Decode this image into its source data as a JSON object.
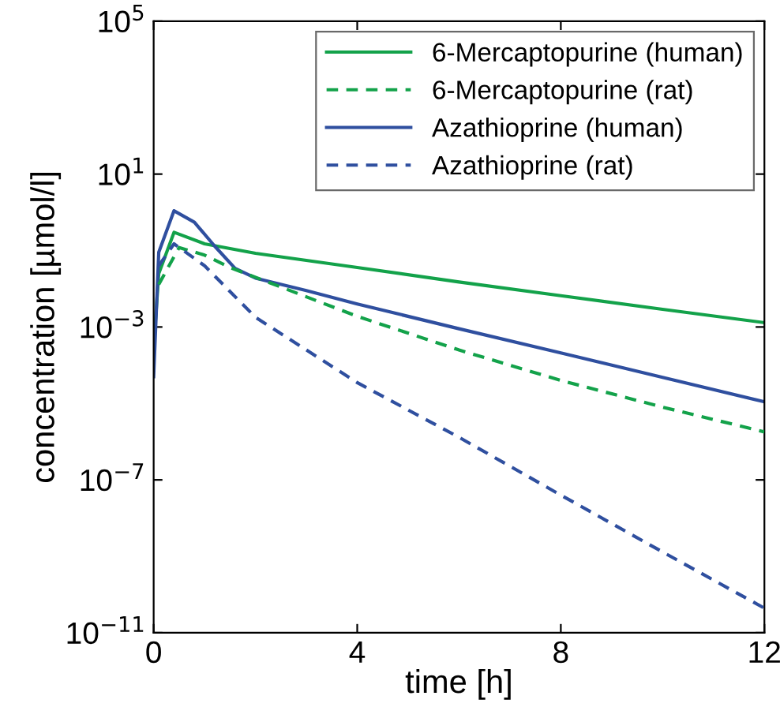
{
  "chart_data": {
    "type": "line",
    "xlabel": "time [h]",
    "ylabel": "concentration [µmol/l]",
    "xlim": [
      0,
      12
    ],
    "xticks": [
      0,
      4,
      8,
      12
    ],
    "ylim": [
      1e-11,
      100000
    ],
    "log": true,
    "yticks": [
      {
        "value": 1e-11,
        "label": "10$^{−11}$"
      },
      {
        "value": 1e-07,
        "label": "10$^{−7}$"
      },
      {
        "value": 0.001,
        "label": "10$^{−3}$"
      },
      {
        "value": 10,
        "label": "10$^{1}$"
      },
      {
        "value": 100000,
        "label": "10$^{5}$"
      }
    ],
    "grid": false,
    "legend": "top right",
    "series": [
      {
        "name": "6-Mercaptopurine (human)",
        "color": "#13a24a",
        "line_style": "solid",
        "x": [
          0,
          0.1,
          0.4,
          1,
          2,
          4,
          6,
          8,
          10,
          12
        ],
        "values": [
          0.0003,
          0.025,
          0.3,
          0.15,
          0.085,
          0.036,
          0.015,
          0.0066,
          0.0029,
          0.0013
        ]
      },
      {
        "name": "6-Mercaptopurine (rat)",
        "color": "#13a24a",
        "line_style": "dashed",
        "x": [
          0.1,
          0.5,
          1,
          1.5,
          2,
          4,
          6,
          8,
          10,
          12
        ],
        "values": [
          0.013,
          0.12,
          0.076,
          0.036,
          0.02,
          0.0019,
          0.00025,
          4e-05,
          8e-06,
          1.8e-06
        ]
      },
      {
        "name": "Azathioprine (human)",
        "color": "#2f4f9f",
        "line_style": "solid",
        "x": [
          0,
          0.1,
          0.4,
          0.8,
          1.2,
          1.6,
          2,
          3,
          4,
          6,
          8,
          10,
          12
        ],
        "values": [
          5e-05,
          0.09,
          1.1,
          0.55,
          0.13,
          0.034,
          0.019,
          0.009,
          0.004,
          0.0009,
          0.00021,
          4.8e-05,
          1.1e-05
        ]
      },
      {
        "name": "Azathioprine (rat)",
        "color": "#2f4f9f",
        "line_style": "dashed",
        "x": [
          0.1,
          0.4,
          1,
          2,
          4,
          6,
          8,
          10,
          12
        ],
        "values": [
          0.04,
          0.15,
          0.04,
          0.0018,
          3.5e-05,
          1.3e-06,
          4e-08,
          1.3e-09,
          4.4e-11
        ]
      }
    ]
  }
}
